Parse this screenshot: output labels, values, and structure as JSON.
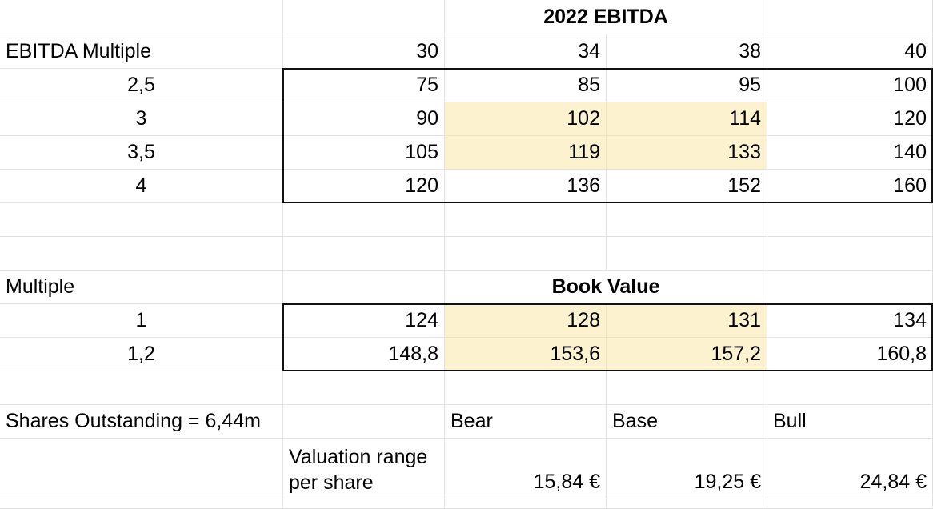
{
  "ebitda_table": {
    "title": "2022 EBITDA",
    "row_header": "EBITDA Multiple",
    "columns": [
      "30",
      "34",
      "38",
      "40"
    ],
    "rows": [
      {
        "multiple": "2,5",
        "values": [
          "75",
          "85",
          "95",
          "100"
        ]
      },
      {
        "multiple": "3",
        "values": [
          "90",
          "102",
          "114",
          "120"
        ]
      },
      {
        "multiple": "3,5",
        "values": [
          "105",
          "119",
          "133",
          "140"
        ]
      },
      {
        "multiple": "4",
        "values": [
          "120",
          "136",
          "152",
          "160"
        ]
      }
    ]
  },
  "book_value_table": {
    "title": "Book Value",
    "row_header": "Multiple",
    "rows": [
      {
        "multiple": "1",
        "values": [
          "124",
          "128",
          "131",
          "134"
        ]
      },
      {
        "multiple": "1,2",
        "values": [
          "148,8",
          "153,6",
          "157,2",
          "160,8"
        ]
      }
    ]
  },
  "valuation": {
    "shares_outstanding": "Shares Outstanding = 6,44m",
    "scenarios": [
      "Bear",
      "Base",
      "Bull"
    ],
    "range_label": "Valuation range per share",
    "values": [
      "15,84 €",
      "19,25 €",
      "24,84 €"
    ]
  },
  "highlight_color": "#fdf2d0"
}
